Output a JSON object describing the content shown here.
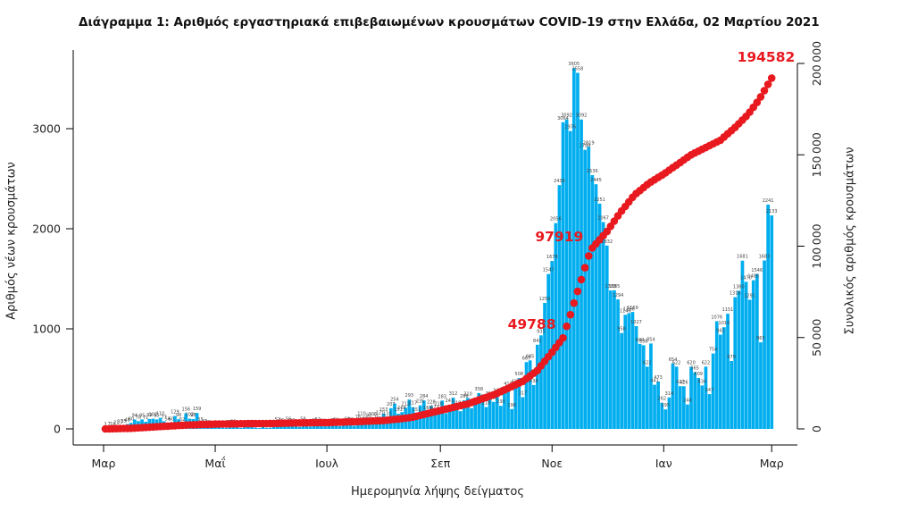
{
  "title": "Διάγραμμα 1: Αριθμός εργαστηριακά επιβεβαιωμένων κρουσμάτων COVID-19 στην Ελλάδα, 02 Μαρτίου 2021",
  "colors": {
    "bar": "#00aeef",
    "line": "#e8191f",
    "annotation": "#e8191f",
    "bar_label": "#444444",
    "axis": "#000000"
  },
  "chart_data": {
    "type": "bar",
    "title": "Διάγραμμα 1: Αριθμός εργαστηριακά επιβεβαιωμένων κρουσμάτων COVID-19 στην Ελλάδα, 02 Μαρτίου 2021",
    "xlabel": "Ημερομηνία λήψης δείγματος",
    "ylabel_left": "Αριθμός νέων κρουσμάτων",
    "ylabel_right": "Συνολικός αριθμός κρουσμάτων",
    "x_tick_labels": [
      "Μαρ",
      "Μαΐ",
      "Ιουλ",
      "Σεπ",
      "Νοε",
      "Ιαν",
      "Μαρ"
    ],
    "x_tick_days": [
      0,
      61,
      122,
      184,
      245,
      306,
      365
    ],
    "y_left_ticks": [
      0,
      1000,
      2000,
      3000
    ],
    "y_left_lim": [
      0,
      3800
    ],
    "y_right_ticks": [
      0,
      50000,
      100000,
      150000,
      200000
    ],
    "y_right_lim": [
      0,
      200000
    ],
    "grid": false,
    "bars": {
      "name": "Αριθμός νέων κρουσμάτων (daily confirmed cases, sampled every 2 days, Mar 2 2020 – Mar 1 2021)",
      "start_day": 1,
      "step_days": 2,
      "values": [
        3,
        7,
        10,
        21,
        31,
        35,
        48,
        60,
        94,
        78,
        95,
        71,
        99,
        102,
        95,
        110,
        77,
        56,
        60,
        129,
        96,
        52,
        156,
        102,
        98,
        159,
        55,
        37,
        28,
        16,
        20,
        15,
        12,
        10,
        25,
        32,
        19,
        10,
        15,
        21,
        28,
        12,
        8,
        19,
        11,
        12,
        20,
        52,
        46,
        27,
        56,
        43,
        31,
        19,
        58,
        28,
        23,
        43,
        52,
        40,
        25,
        31,
        43,
        50,
        28,
        33,
        60,
        52,
        31,
        78,
        110,
        65,
        92,
        108,
        75,
        121,
        153,
        110,
        207,
        254,
        151,
        168,
        212,
        293,
        217,
        151,
        235,
        284,
        169,
        228,
        177,
        210,
        283,
        156,
        241,
        312,
        218,
        177,
        286,
        310,
        207,
        243,
        358,
        286,
        218,
        312,
        270,
        342,
        230,
        358,
        412,
        198,
        435,
        508,
        317,
        667,
        685,
        438,
        841,
        935,
        1259,
        1547,
        1678,
        2056,
        2436,
        3064,
        3092,
        2976,
        3605,
        3558,
        3092,
        2788,
        2819,
        2536,
        2445,
        2251,
        2067,
        1832,
        1383,
        1385,
        1294,
        958,
        1140,
        1156,
        1169,
        1027,
        849,
        836,
        622,
        854,
        441,
        473,
        262,
        195,
        314,
        654,
        622,
        427,
        426,
        244,
        620,
        565,
        509,
        434,
        622,
        347,
        754,
        1076,
        941,
        1016,
        1151,
        679,
        1316,
        1380,
        1681,
        1470,
        1291,
        1485,
        1546,
        865,
        1683,
        2241,
        2133
      ]
    },
    "cumulative_line": {
      "name": "Συνολικός αριθμός κρουσμάτων (cumulative total, red dotted curve)",
      "points": [
        {
          "day": 1,
          "total": 10
        },
        {
          "day": 15,
          "total": 330
        },
        {
          "day": 31,
          "total": 1310
        },
        {
          "day": 46,
          "total": 2170
        },
        {
          "day": 61,
          "total": 2620
        },
        {
          "day": 76,
          "total": 2840
        },
        {
          "day": 92,
          "total": 2980
        },
        {
          "day": 107,
          "total": 3300
        },
        {
          "day": 122,
          "total": 3460
        },
        {
          "day": 137,
          "total": 3910
        },
        {
          "day": 153,
          "total": 4590
        },
        {
          "day": 168,
          "total": 6200
        },
        {
          "day": 184,
          "total": 10130
        },
        {
          "day": 199,
          "total": 13700
        },
        {
          "day": 214,
          "total": 19000
        },
        {
          "day": 229,
          "total": 26000
        },
        {
          "day": 237,
          "total": 32000
        },
        {
          "day": 245,
          "total": 42000
        },
        {
          "day": 251,
          "total": 49788
        },
        {
          "day": 258,
          "total": 72000
        },
        {
          "day": 266,
          "total": 97919
        },
        {
          "day": 275,
          "total": 108000
        },
        {
          "day": 282,
          "total": 118000
        },
        {
          "day": 290,
          "total": 128000
        },
        {
          "day": 298,
          "total": 134500
        },
        {
          "day": 306,
          "total": 139450
        },
        {
          "day": 321,
          "total": 150000
        },
        {
          "day": 337,
          "total": 158000
        },
        {
          "day": 345,
          "total": 165000
        },
        {
          "day": 352,
          "total": 172000
        },
        {
          "day": 358,
          "total": 180000
        },
        {
          "day": 365,
          "total": 192000
        },
        {
          "day": 366,
          "total": 194582
        }
      ]
    },
    "annotations": [
      {
        "text": "49788",
        "day": 251,
        "value": 49788
      },
      {
        "text": "97919",
        "day": 266,
        "value": 97919
      },
      {
        "text": "194582",
        "day": 366,
        "value": 194582
      }
    ]
  }
}
